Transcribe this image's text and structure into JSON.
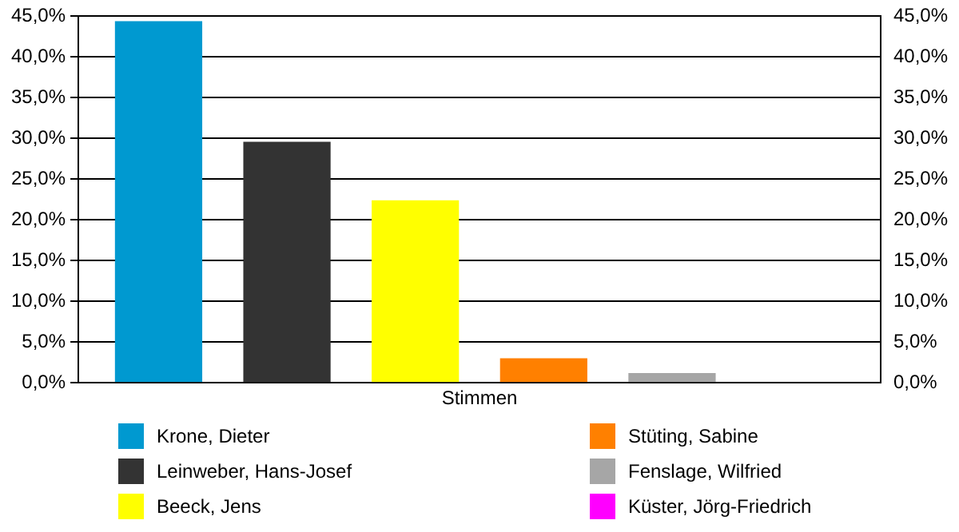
{
  "chart_data": {
    "type": "bar",
    "xlabel": null,
    "categories": [
      "Stimmen"
    ],
    "series": [
      {
        "name": "Krone, Dieter",
        "color": "#0099d0",
        "values": [
          44.4
        ]
      },
      {
        "name": "Leinweber, Hans-Josef",
        "color": "#333333",
        "values": [
          29.6
        ]
      },
      {
        "name": "Beeck, Jens",
        "color": "#ffff00",
        "values": [
          22.4
        ]
      },
      {
        "name": "Stüting, Sabine",
        "color": "#ff8000",
        "values": [
          3.0
        ]
      },
      {
        "name": "Fenslage, Wilfried",
        "color": "#a6a6a6",
        "values": [
          1.2
        ]
      },
      {
        "name": "Küster, Jörg-Friedrich",
        "color": "#ff00ff",
        "values": [
          0
        ]
      }
    ],
    "ylim": [
      0,
      45
    ],
    "yticks": [
      {
        "value": 0,
        "label": "0,0%"
      },
      {
        "value": 5,
        "label": "5,0%"
      },
      {
        "value": 10,
        "label": "10,0%"
      },
      {
        "value": 15,
        "label": "15,0%"
      },
      {
        "value": 20,
        "label": "20,0%"
      },
      {
        "value": 25,
        "label": "25,0%"
      },
      {
        "value": 30,
        "label": "30,0%"
      },
      {
        "value": 35,
        "label": "35,0%"
      },
      {
        "value": 40,
        "label": "40,0%"
      },
      {
        "value": 45,
        "label": "45,0%"
      }
    ],
    "grid": "y",
    "legend": "bottom"
  }
}
